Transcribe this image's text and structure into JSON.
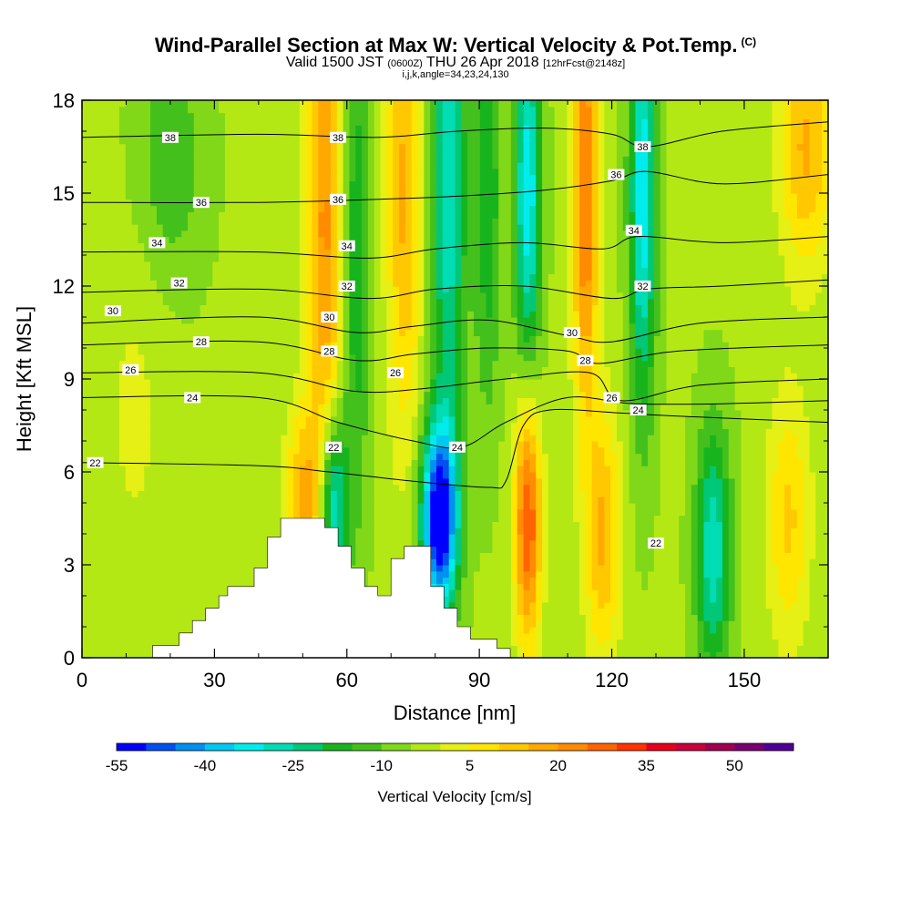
{
  "title": {
    "main": "Wind-Parallel Section at Max W: Vertical Velocity & Pot.Temp.",
    "units_note": "(C)",
    "valid_prefix": "Valid 1500 JST",
    "valid_utc": "(0600Z)",
    "valid_date": "THU 26 Apr 2018",
    "forecast": "[12hrFcst@2148z]",
    "indices": "i,j,k,angle=34,23,24,130"
  },
  "colors": {
    "scale": [
      "#0000ff",
      "#0050f0",
      "#0090f0",
      "#00c8f0",
      "#00ecec",
      "#00dcb4",
      "#00c878",
      "#18b41e",
      "#44c01c",
      "#80d818",
      "#b4e814",
      "#e6f014",
      "#ffe600",
      "#ffc800",
      "#ffa800",
      "#ff8c00",
      "#ff6400",
      "#ff3200",
      "#e6001e",
      "#c8003c",
      "#a00050",
      "#780070",
      "#500096"
    ],
    "contour": "#000000",
    "terrain": "#ffffff"
  },
  "chart_data": {
    "type": "heatmap",
    "xlabel": "Distance [nm]",
    "ylabel": "Height [Kft MSL]",
    "xlim": [
      0,
      169
    ],
    "ylim": [
      0,
      18
    ],
    "xticks": [
      0,
      30,
      60,
      90,
      120,
      150
    ],
    "yticks": [
      0,
      3,
      6,
      9,
      12,
      15,
      18
    ],
    "colorbar": {
      "label": "Vertical Velocity [cm/s]",
      "min": -55,
      "max": 60,
      "step": 5,
      "ticks": [
        -55,
        -40,
        -25,
        -10,
        5,
        20,
        35,
        50
      ]
    },
    "vertical_velocity_features": [
      {
        "x": 55,
        "y": 14,
        "value": 25,
        "xwidth": 4,
        "ywidth": 9
      },
      {
        "x": 62,
        "y": 13,
        "value": -15,
        "xwidth": 3,
        "ywidth": 9
      },
      {
        "x": 57,
        "y": 5,
        "value": -30,
        "xwidth": 3,
        "ywidth": 3
      },
      {
        "x": 50,
        "y": 5,
        "value": 20,
        "xwidth": 4,
        "ywidth": 3
      },
      {
        "x": 73,
        "y": 15,
        "value": 20,
        "xwidth": 4,
        "ywidth": 8
      },
      {
        "x": 83,
        "y": 15,
        "value": -25,
        "xwidth": 4,
        "ywidth": 8
      },
      {
        "x": 81,
        "y": 4.5,
        "value": -55,
        "xwidth": 4,
        "ywidth": 3
      },
      {
        "x": 92,
        "y": 15,
        "value": -15,
        "xwidth": 3,
        "ywidth": 7
      },
      {
        "x": 101,
        "y": 15,
        "value": -30,
        "xwidth": 3,
        "ywidth": 6
      },
      {
        "x": 101,
        "y": 4.5,
        "value": 35,
        "xwidth": 3,
        "ywidth": 4
      },
      {
        "x": 114,
        "y": 15,
        "value": 30,
        "xwidth": 3,
        "ywidth": 7
      },
      {
        "x": 118,
        "y": 4,
        "value": 20,
        "xwidth": 4,
        "ywidth": 4
      },
      {
        "x": 127,
        "y": 15,
        "value": -30,
        "xwidth": 3,
        "ywidth": 7
      },
      {
        "x": 143,
        "y": 3.5,
        "value": -25,
        "xwidth": 4,
        "ywidth": 4
      },
      {
        "x": 160,
        "y": 4.5,
        "value": 15,
        "xwidth": 5,
        "ywidth": 4
      },
      {
        "x": 164,
        "y": 16.5,
        "value": 20,
        "xwidth": 6,
        "ywidth": 4
      },
      {
        "x": 12,
        "y": 8,
        "value": 5,
        "xwidth": 8,
        "ywidth": 6
      },
      {
        "x": 20,
        "y": 16,
        "value": -10,
        "xwidth": 8,
        "ywidth": 4
      }
    ],
    "terrain_profile": [
      [
        0,
        0
      ],
      [
        16,
        0
      ],
      [
        16,
        0.4
      ],
      [
        22,
        0.4
      ],
      [
        22,
        0.8
      ],
      [
        25,
        0.8
      ],
      [
        25,
        1.2
      ],
      [
        28,
        1.2
      ],
      [
        28,
        1.6
      ],
      [
        31,
        1.6
      ],
      [
        31,
        2.0
      ],
      [
        33,
        2.0
      ],
      [
        33,
        2.3
      ],
      [
        39,
        2.3
      ],
      [
        39,
        2.9
      ],
      [
        42,
        2.9
      ],
      [
        42,
        3.9
      ],
      [
        45,
        3.9
      ],
      [
        45,
        4.5
      ],
      [
        55,
        4.5
      ],
      [
        55,
        4.2
      ],
      [
        58,
        4.2
      ],
      [
        58,
        3.6
      ],
      [
        61,
        3.6
      ],
      [
        61,
        2.9
      ],
      [
        64,
        2.9
      ],
      [
        64,
        2.3
      ],
      [
        67,
        2.3
      ],
      [
        67,
        2.0
      ],
      [
        70,
        2.0
      ],
      [
        70,
        3.2
      ],
      [
        73,
        3.2
      ],
      [
        73,
        3.6
      ],
      [
        79,
        3.6
      ],
      [
        79,
        2.3
      ],
      [
        82,
        2.3
      ],
      [
        82,
        1.6
      ],
      [
        85,
        1.6
      ],
      [
        85,
        1.0
      ],
      [
        88,
        1.0
      ],
      [
        88,
        0.6
      ],
      [
        94,
        0.6
      ],
      [
        94,
        0.3
      ],
      [
        97,
        0.3
      ],
      [
        97,
        0
      ],
      [
        169,
        0
      ]
    ],
    "potential_temperature_contours": [
      {
        "value": 22,
        "points": [
          [
            0,
            6.3
          ],
          [
            40,
            6.2
          ],
          [
            56,
            6.0
          ],
          [
            75,
            5.7
          ],
          [
            92,
            5.5
          ],
          [
            96,
            5.7
          ],
          [
            100,
            7.5
          ],
          [
            106,
            8.0
          ],
          [
            122,
            7.9
          ],
          [
            135,
            7.8
          ],
          [
            169,
            7.6
          ]
        ]
      },
      {
        "value": 24,
        "points": [
          [
            0,
            8.4
          ],
          [
            40,
            8.4
          ],
          [
            58,
            7.6
          ],
          [
            75,
            7.0
          ],
          [
            86,
            6.8
          ],
          [
            96,
            7.6
          ],
          [
            110,
            8.4
          ],
          [
            125,
            8.2
          ],
          [
            145,
            8.2
          ],
          [
            169,
            8.3
          ]
        ]
      },
      {
        "value": 26,
        "points": [
          [
            0,
            9.2
          ],
          [
            40,
            9.2
          ],
          [
            62,
            8.6
          ],
          [
            78,
            8.7
          ],
          [
            96,
            9.0
          ],
          [
            115,
            9.2
          ],
          [
            122,
            8.3
          ],
          [
            140,
            8.8
          ],
          [
            169,
            9.0
          ]
        ]
      },
      {
        "value": 28,
        "points": [
          [
            0,
            10.1
          ],
          [
            40,
            10.2
          ],
          [
            62,
            9.6
          ],
          [
            75,
            9.8
          ],
          [
            92,
            10.0
          ],
          [
            110,
            9.9
          ],
          [
            117,
            9.5
          ],
          [
            135,
            9.9
          ],
          [
            169,
            10.1
          ]
        ]
      },
      {
        "value": 30,
        "points": [
          [
            0,
            10.8
          ],
          [
            40,
            11.0
          ],
          [
            62,
            10.5
          ],
          [
            75,
            10.7
          ],
          [
            92,
            10.9
          ],
          [
            110,
            10.4
          ],
          [
            120,
            10.2
          ],
          [
            140,
            10.8
          ],
          [
            169,
            11.0
          ]
        ]
      },
      {
        "value": 32,
        "points": [
          [
            0,
            11.8
          ],
          [
            40,
            11.9
          ],
          [
            65,
            11.6
          ],
          [
            80,
            11.9
          ],
          [
            100,
            12.0
          ],
          [
            120,
            11.6
          ],
          [
            128,
            11.9
          ],
          [
            145,
            12.0
          ],
          [
            169,
            12.2
          ]
        ]
      },
      {
        "value": 34,
        "points": [
          [
            0,
            13.1
          ],
          [
            40,
            13.1
          ],
          [
            65,
            12.9
          ],
          [
            80,
            13.2
          ],
          [
            100,
            13.4
          ],
          [
            118,
            13.2
          ],
          [
            126,
            13.6
          ],
          [
            145,
            13.4
          ],
          [
            169,
            13.6
          ]
        ]
      },
      {
        "value": 36,
        "points": [
          [
            0,
            14.7
          ],
          [
            40,
            14.7
          ],
          [
            67,
            14.8
          ],
          [
            85,
            14.9
          ],
          [
            105,
            15.1
          ],
          [
            120,
            15.4
          ],
          [
            128,
            15.7
          ],
          [
            145,
            15.3
          ],
          [
            169,
            15.6
          ]
        ]
      },
      {
        "value": 38,
        "points": [
          [
            0,
            16.8
          ],
          [
            40,
            16.9
          ],
          [
            67,
            16.8
          ],
          [
            85,
            17.0
          ],
          [
            105,
            17.1
          ],
          [
            120,
            16.9
          ],
          [
            128,
            16.5
          ],
          [
            145,
            17.0
          ],
          [
            169,
            17.3
          ]
        ]
      }
    ],
    "contour_labels": [
      {
        "text": "38",
        "x": 20,
        "y": 16.8
      },
      {
        "text": "38",
        "x": 58,
        "y": 16.8
      },
      {
        "text": "38",
        "x": 127,
        "y": 16.5
      },
      {
        "text": "36",
        "x": 27,
        "y": 14.7
      },
      {
        "text": "36",
        "x": 58,
        "y": 14.8
      },
      {
        "text": "36",
        "x": 121,
        "y": 15.6
      },
      {
        "text": "34",
        "x": 17,
        "y": 13.4
      },
      {
        "text": "34",
        "x": 60,
        "y": 13.3
      },
      {
        "text": "34",
        "x": 125,
        "y": 13.8
      },
      {
        "text": "32",
        "x": 22,
        "y": 12.1
      },
      {
        "text": "32",
        "x": 60,
        "y": 12.0
      },
      {
        "text": "32",
        "x": 127,
        "y": 12.0
      },
      {
        "text": "30",
        "x": 7,
        "y": 11.2
      },
      {
        "text": "30",
        "x": 56,
        "y": 11.0
      },
      {
        "text": "30",
        "x": 111,
        "y": 10.5
      },
      {
        "text": "28",
        "x": 27,
        "y": 10.2
      },
      {
        "text": "28",
        "x": 56,
        "y": 9.9
      },
      {
        "text": "28",
        "x": 114,
        "y": 9.6
      },
      {
        "text": "26",
        "x": 11,
        "y": 9.3
      },
      {
        "text": "26",
        "x": 71,
        "y": 9.2
      },
      {
        "text": "26",
        "x": 120,
        "y": 8.4
      },
      {
        "text": "24",
        "x": 25,
        "y": 8.4
      },
      {
        "text": "24",
        "x": 85,
        "y": 6.8
      },
      {
        "text": "24",
        "x": 126,
        "y": 8.0
      },
      {
        "text": "22",
        "x": 3,
        "y": 6.3
      },
      {
        "text": "22",
        "x": 57,
        "y": 6.8
      },
      {
        "text": "22",
        "x": 130,
        "y": 3.7
      }
    ]
  }
}
